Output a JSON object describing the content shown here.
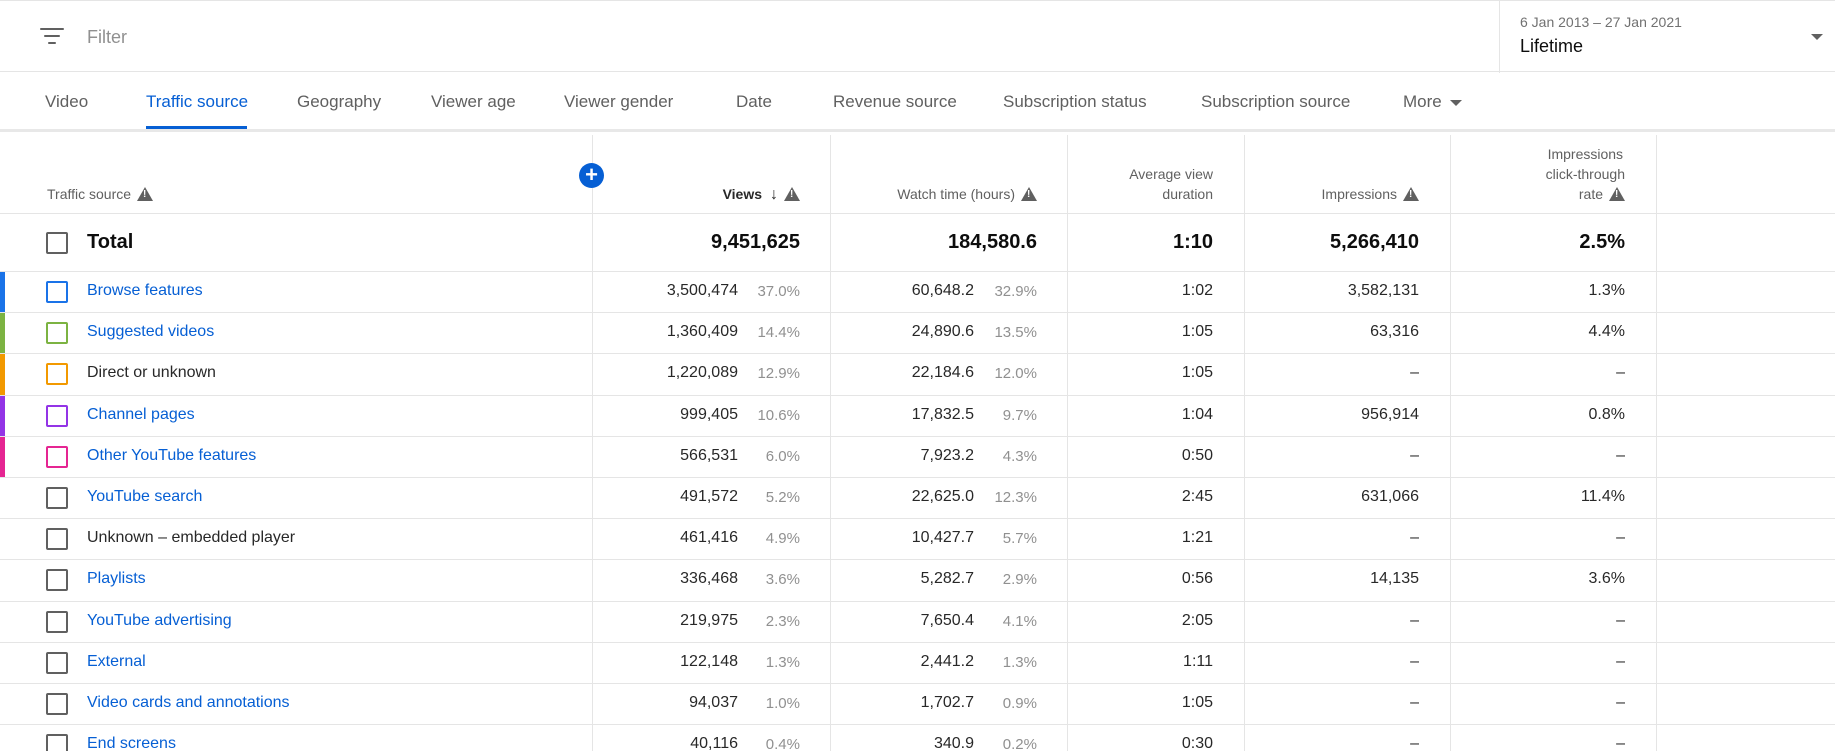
{
  "filter": {
    "placeholder": "Filter"
  },
  "date": {
    "range": "6 Jan 2013 – 27 Jan 2021",
    "value": "Lifetime"
  },
  "tabs": [
    {
      "label": "Video"
    },
    {
      "label": "Traffic source"
    },
    {
      "label": "Geography"
    },
    {
      "label": "Viewer age"
    },
    {
      "label": "Viewer gender"
    },
    {
      "label": "Date"
    },
    {
      "label": "Revenue source"
    },
    {
      "label": "Subscription status"
    },
    {
      "label": "Subscription source"
    },
    {
      "label": "More"
    }
  ],
  "active_tab": "Traffic source",
  "columns": {
    "source": "Traffic source",
    "views": "Views",
    "watch": "Watch time (hours)",
    "avg_line1": "Average view",
    "avg_line2": "duration",
    "impr": "Impressions",
    "ctr_line1": "Impressions",
    "ctr_line2": "click-through",
    "ctr_line3": "rate"
  },
  "total": {
    "label": "Total",
    "views": "9,451,625",
    "watch": "184,580.6",
    "avg": "1:10",
    "impr": "5,266,410",
    "ctr": "2.5%"
  },
  "rows": [
    {
      "label": "Browse features",
      "link": true,
      "color": "#1a73e8",
      "views": "3,500,474",
      "views_pct": "37.0%",
      "watch": "60,648.2",
      "watch_pct": "32.9%",
      "avg": "1:02",
      "impr": "3,582,131",
      "ctr": "1.3%"
    },
    {
      "label": "Suggested videos",
      "link": true,
      "color": "#7cb342",
      "views": "1,360,409",
      "views_pct": "14.4%",
      "watch": "24,890.6",
      "watch_pct": "13.5%",
      "avg": "1:05",
      "impr": "63,316",
      "ctr": "4.4%"
    },
    {
      "label": "Direct or unknown",
      "link": false,
      "color": "#f29900",
      "views": "1,220,089",
      "views_pct": "12.9%",
      "watch": "22,184.6",
      "watch_pct": "12.0%",
      "avg": "1:05",
      "impr": "–",
      "ctr": "–"
    },
    {
      "label": "Channel pages",
      "link": true,
      "color": "#9334e6",
      "views": "999,405",
      "views_pct": "10.6%",
      "watch": "17,832.5",
      "watch_pct": "9.7%",
      "avg": "1:04",
      "impr": "956,914",
      "ctr": "0.8%"
    },
    {
      "label": "Other YouTube features",
      "link": true,
      "color": "#e52592",
      "views": "566,531",
      "views_pct": "6.0%",
      "watch": "7,923.2",
      "watch_pct": "4.3%",
      "avg": "0:50",
      "impr": "–",
      "ctr": "–"
    },
    {
      "label": "YouTube search",
      "link": true,
      "color": "",
      "views": "491,572",
      "views_pct": "5.2%",
      "watch": "22,625.0",
      "watch_pct": "12.3%",
      "avg": "2:45",
      "impr": "631,066",
      "ctr": "11.4%"
    },
    {
      "label": "Unknown – embedded player",
      "link": false,
      "color": "",
      "views": "461,416",
      "views_pct": "4.9%",
      "watch": "10,427.7",
      "watch_pct": "5.7%",
      "avg": "1:21",
      "impr": "–",
      "ctr": "–"
    },
    {
      "label": "Playlists",
      "link": true,
      "color": "",
      "views": "336,468",
      "views_pct": "3.6%",
      "watch": "5,282.7",
      "watch_pct": "2.9%",
      "avg": "0:56",
      "impr": "14,135",
      "ctr": "3.6%"
    },
    {
      "label": "YouTube advertising",
      "link": true,
      "color": "",
      "views": "219,975",
      "views_pct": "2.3%",
      "watch": "7,650.4",
      "watch_pct": "4.1%",
      "avg": "2:05",
      "impr": "–",
      "ctr": "–"
    },
    {
      "label": "External",
      "link": true,
      "color": "",
      "views": "122,148",
      "views_pct": "1.3%",
      "watch": "2,441.2",
      "watch_pct": "1.3%",
      "avg": "1:11",
      "impr": "–",
      "ctr": "–"
    },
    {
      "label": "Video cards and annotations",
      "link": true,
      "color": "",
      "views": "94,037",
      "views_pct": "1.0%",
      "watch": "1,702.7",
      "watch_pct": "0.9%",
      "avg": "1:05",
      "impr": "–",
      "ctr": "–"
    },
    {
      "label": "End screens",
      "link": true,
      "color": "",
      "views": "40,116",
      "views_pct": "0.4%",
      "watch": "340.9",
      "watch_pct": "0.2%",
      "avg": "0:30",
      "impr": "–",
      "ctr": "–"
    }
  ]
}
